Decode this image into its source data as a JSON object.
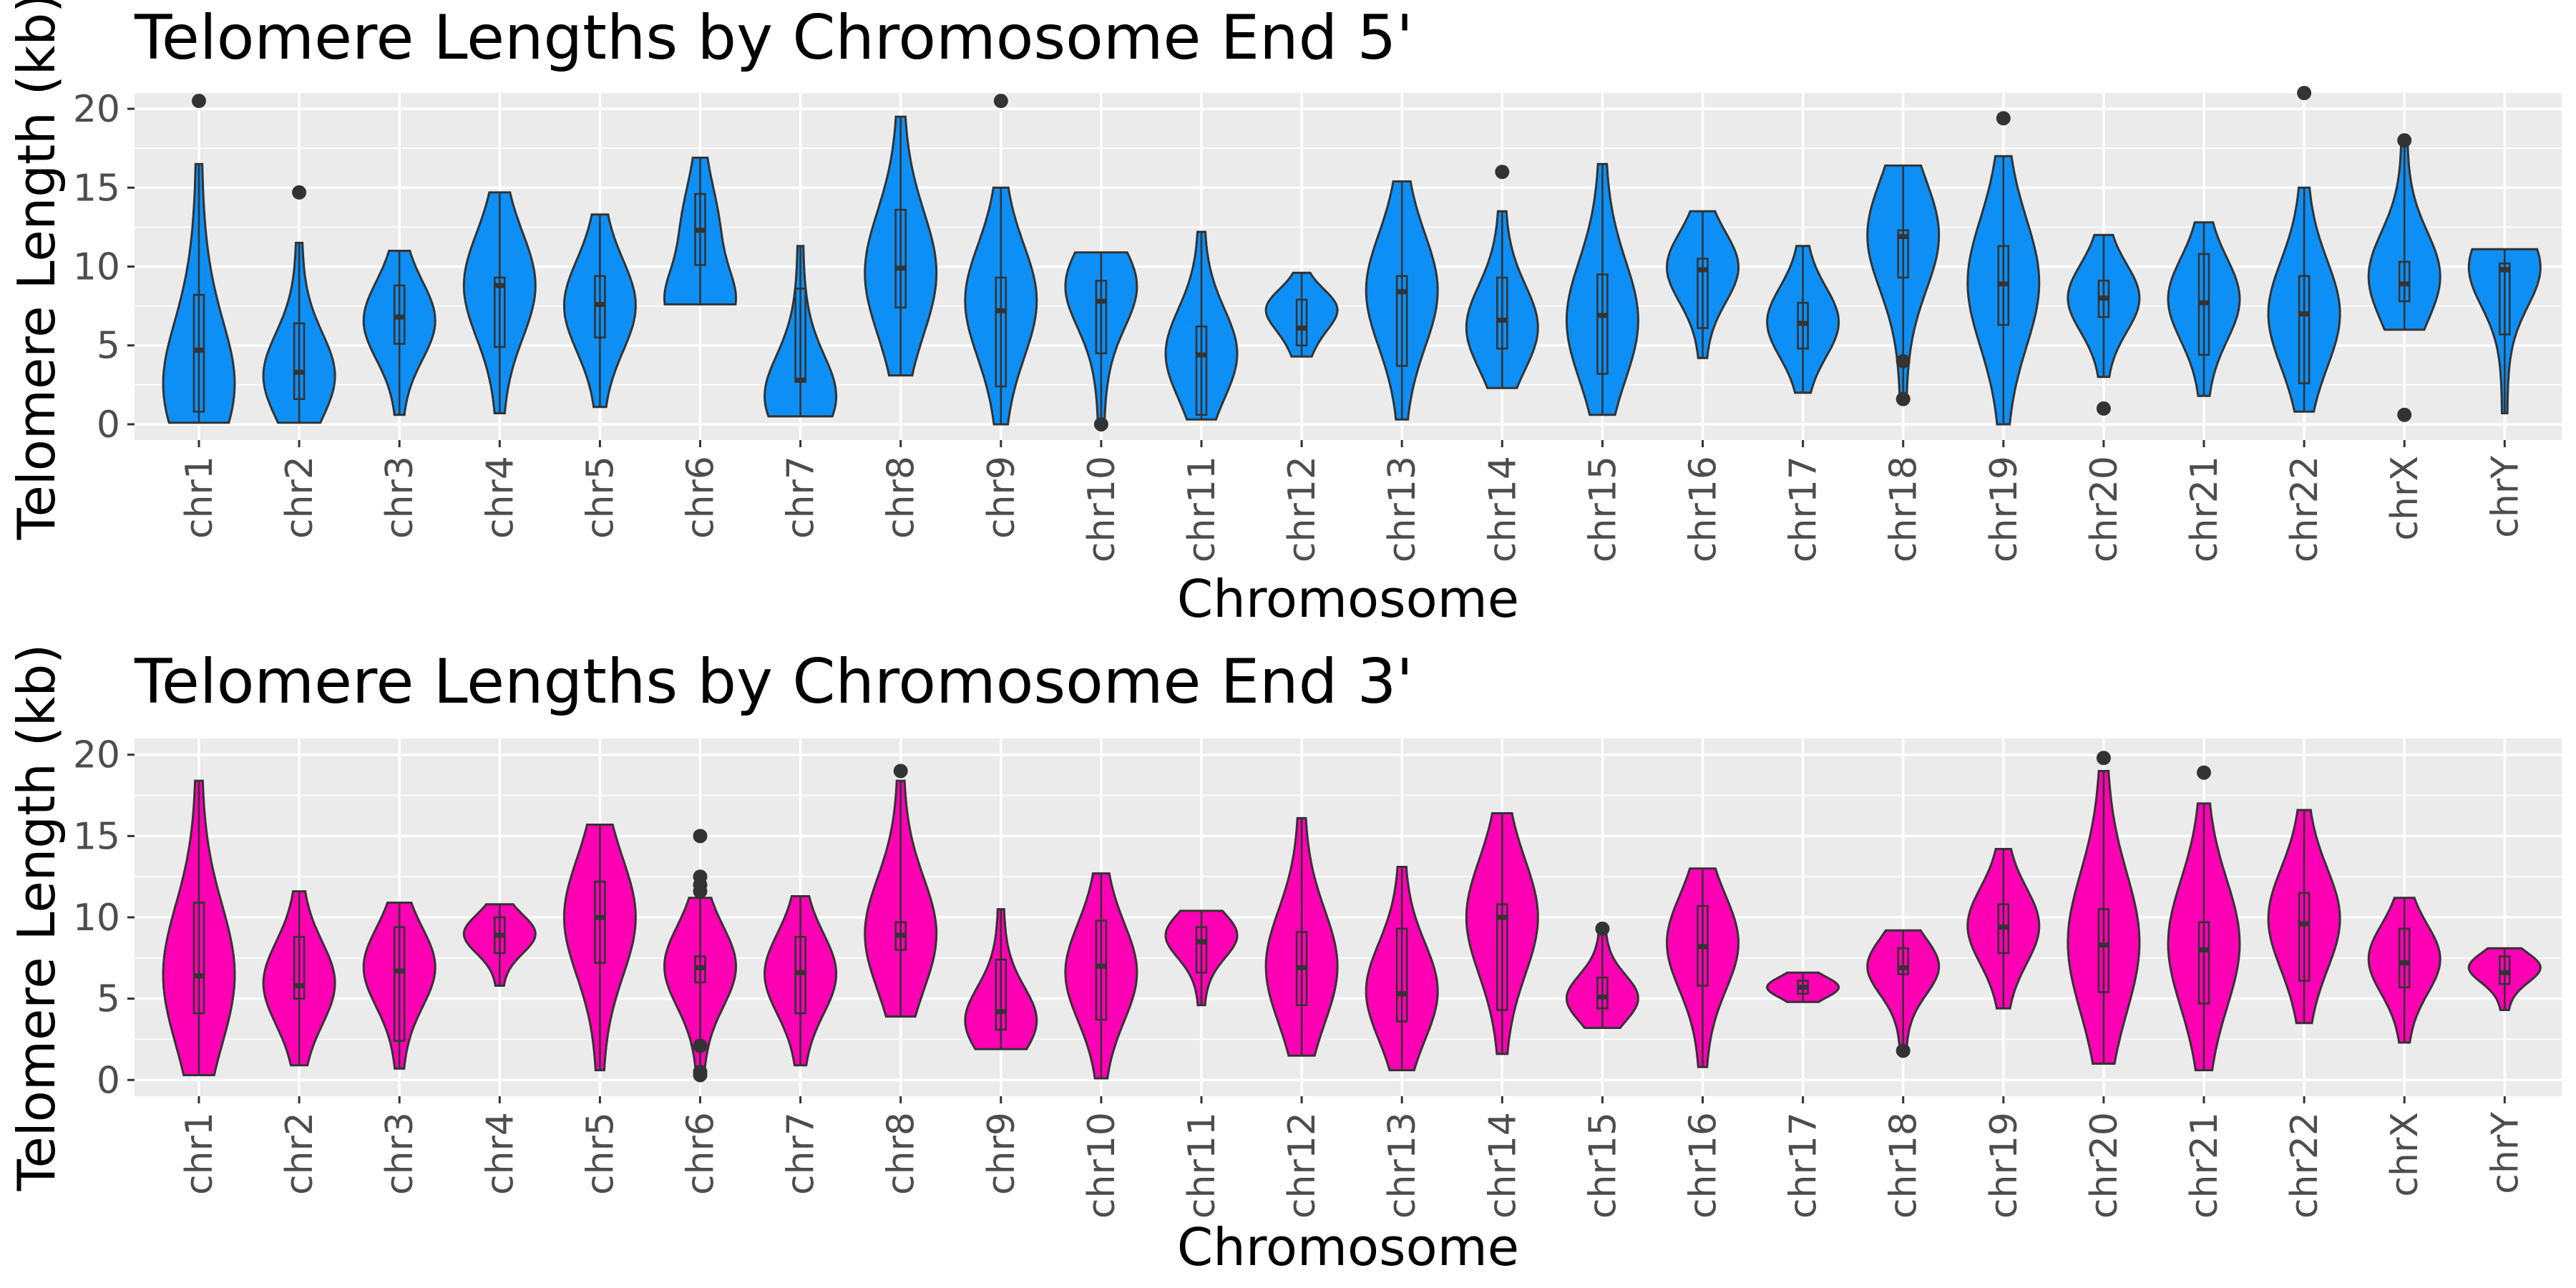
{
  "chart_data": [
    {
      "type": "violin",
      "title": "Telomere Lengths by Chromosome End 5'",
      "xlabel": "Chromosome",
      "ylabel": "Telomere Length (kb)",
      "ylim": [
        -1,
        21
      ],
      "yticks": [
        0,
        5,
        10,
        15,
        20
      ],
      "grid": true,
      "fill_color": "#0d8ff5",
      "categories": [
        "chr1",
        "chr2",
        "chr3",
        "chr4",
        "chr5",
        "chr6",
        "chr7",
        "chr8",
        "chr9",
        "chr10",
        "chr11",
        "chr12",
        "chr13",
        "chr14",
        "chr15",
        "chr16",
        "chr17",
        "chr18",
        "chr19",
        "chr20",
        "chr21",
        "chr22",
        "chrX",
        "chrY"
      ],
      "series": [
        {
          "category": "chr1",
          "min": 0.1,
          "q1": 0.8,
          "median": 4.7,
          "q3": 8.2,
          "max": 16.5,
          "outliers": [
            20.5
          ],
          "peak": 2.0
        },
        {
          "category": "chr2",
          "min": 0.1,
          "q1": 1.6,
          "median": 3.3,
          "q3": 6.4,
          "max": 11.5,
          "outliers": [
            14.7
          ],
          "peak": 3.0
        },
        {
          "category": "chr3",
          "min": 0.6,
          "q1": 5.1,
          "median": 6.8,
          "q3": 8.8,
          "max": 11.0,
          "outliers": [],
          "peak": 6.5
        },
        {
          "category": "chr4",
          "min": 0.7,
          "q1": 4.9,
          "median": 8.8,
          "q3": 9.3,
          "max": 14.7,
          "outliers": [],
          "peak": 8.8
        },
        {
          "category": "chr5",
          "min": 1.1,
          "q1": 5.5,
          "median": 7.6,
          "q3": 9.4,
          "max": 13.3,
          "outliers": [],
          "peak": 7.5
        },
        {
          "category": "chr6",
          "min": 7.6,
          "q1": 10.1,
          "median": 12.3,
          "q3": 14.6,
          "max": 16.9,
          "outliers": [],
          "peak": 7.6
        },
        {
          "category": "chr7",
          "min": 0.5,
          "q1": 2.7,
          "median": 2.8,
          "q3": 8.6,
          "max": 11.3,
          "outliers": [],
          "peak": 1.5
        },
        {
          "category": "chr8",
          "min": 3.1,
          "q1": 7.4,
          "median": 9.9,
          "q3": 13.6,
          "max": 19.5,
          "outliers": [],
          "peak": 9.5
        },
        {
          "category": "chr9",
          "min": 0.0,
          "q1": 2.4,
          "median": 7.2,
          "q3": 9.3,
          "max": 15.0,
          "outliers": [
            20.5
          ],
          "peak": 8.0
        },
        {
          "category": "chr10",
          "min": 0.1,
          "q1": 4.5,
          "median": 7.8,
          "q3": 9.1,
          "max": 10.9,
          "outliers": [
            0.0
          ],
          "peak": 9.0
        },
        {
          "category": "chr11",
          "min": 0.3,
          "q1": 0.6,
          "median": 4.4,
          "q3": 6.2,
          "max": 12.2,
          "outliers": [],
          "peak": 4.5
        },
        {
          "category": "chr12",
          "min": 4.3,
          "q1": 5.0,
          "median": 6.1,
          "q3": 7.9,
          "max": 9.6,
          "outliers": [],
          "peak": 7.5
        },
        {
          "category": "chr13",
          "min": 0.3,
          "q1": 3.7,
          "median": 8.4,
          "q3": 9.4,
          "max": 15.4,
          "outliers": [],
          "peak": 8.5
        },
        {
          "category": "chr14",
          "min": 2.3,
          "q1": 4.8,
          "median": 6.6,
          "q3": 9.3,
          "max": 13.5,
          "outliers": [
            16.0
          ],
          "peak": 6.0
        },
        {
          "category": "chr15",
          "min": 0.6,
          "q1": 3.2,
          "median": 6.9,
          "q3": 9.5,
          "max": 16.5,
          "outliers": [],
          "peak": 6.5
        },
        {
          "category": "chr16",
          "min": 4.2,
          "q1": 6.1,
          "median": 9.8,
          "q3": 10.5,
          "max": 13.5,
          "outliers": [],
          "peak": 10.0
        },
        {
          "category": "chr17",
          "min": 2.0,
          "q1": 4.8,
          "median": 6.4,
          "q3": 7.7,
          "max": 11.3,
          "outliers": [],
          "peak": 6.5
        },
        {
          "category": "chr18",
          "min": 1.8,
          "q1": 9.3,
          "median": 11.9,
          "q3": 12.3,
          "max": 16.4,
          "outliers": [
            1.6,
            4.0
          ],
          "peak": 12.0
        },
        {
          "category": "chr19",
          "min": 0.0,
          "q1": 6.3,
          "median": 8.9,
          "q3": 11.3,
          "max": 17.0,
          "outliers": [
            19.4
          ],
          "peak": 9.0
        },
        {
          "category": "chr20",
          "min": 3.0,
          "q1": 6.8,
          "median": 8.0,
          "q3": 9.1,
          "max": 12.0,
          "outliers": [
            1.0
          ],
          "peak": 8.0
        },
        {
          "category": "chr21",
          "min": 1.8,
          "q1": 4.4,
          "median": 7.7,
          "q3": 10.8,
          "max": 12.8,
          "outliers": [],
          "peak": 8.0
        },
        {
          "category": "chr22",
          "min": 0.8,
          "q1": 2.6,
          "median": 7.0,
          "q3": 9.4,
          "max": 15.0,
          "outliers": [
            21.0
          ],
          "peak": 7.0
        },
        {
          "category": "chrX",
          "min": 6.0,
          "q1": 7.8,
          "median": 8.9,
          "q3": 10.3,
          "max": 17.9,
          "outliers": [
            0.6,
            18.0
          ],
          "peak": 9.5
        },
        {
          "category": "chrY",
          "min": 0.7,
          "q1": 5.7,
          "median": 9.8,
          "q3": 10.2,
          "max": 11.1,
          "outliers": [],
          "peak": 10.0
        }
      ]
    },
    {
      "type": "violin",
      "title": "Telomere Lengths by Chromosome End 3'",
      "xlabel": "Chromosome",
      "ylabel": "Telomere Length (kb)",
      "ylim": [
        -1,
        21
      ],
      "yticks": [
        0,
        5,
        10,
        15,
        20
      ],
      "grid": true,
      "fill_color": "#ff00b4",
      "categories": [
        "chr1",
        "chr2",
        "chr3",
        "chr4",
        "chr5",
        "chr6",
        "chr7",
        "chr8",
        "chr9",
        "chr10",
        "chr11",
        "chr12",
        "chr13",
        "chr14",
        "chr15",
        "chr16",
        "chr17",
        "chr18",
        "chr19",
        "chr20",
        "chr21",
        "chr22",
        "chrX",
        "chrY"
      ],
      "series": [
        {
          "category": "chr1",
          "min": 0.3,
          "q1": 4.1,
          "median": 6.4,
          "q3": 10.9,
          "max": 18.4,
          "outliers": [],
          "peak": 6.5
        },
        {
          "category": "chr2",
          "min": 0.9,
          "q1": 5.0,
          "median": 5.8,
          "q3": 8.8,
          "max": 11.6,
          "outliers": [],
          "peak": 6.0
        },
        {
          "category": "chr3",
          "min": 0.7,
          "q1": 2.4,
          "median": 6.7,
          "q3": 9.4,
          "max": 10.9,
          "outliers": [],
          "peak": 7.0
        },
        {
          "category": "chr4",
          "min": 5.8,
          "q1": 7.8,
          "median": 8.9,
          "q3": 10.0,
          "max": 10.8,
          "outliers": [],
          "peak": 9.0
        },
        {
          "category": "chr5",
          "min": 0.6,
          "q1": 7.2,
          "median": 10.0,
          "q3": 12.2,
          "max": 15.7,
          "outliers": [],
          "peak": 10.0
        },
        {
          "category": "chr6",
          "min": 0.8,
          "q1": 6.0,
          "median": 6.9,
          "q3": 7.6,
          "max": 11.2,
          "outliers": [
            0.3,
            0.5,
            2.1,
            11.6,
            12.0,
            12.5,
            15.0
          ],
          "peak": 7.0
        },
        {
          "category": "chr7",
          "min": 0.9,
          "q1": 4.1,
          "median": 6.6,
          "q3": 8.8,
          "max": 11.3,
          "outliers": [],
          "peak": 6.5
        },
        {
          "category": "chr8",
          "min": 3.9,
          "q1": 8.0,
          "median": 8.9,
          "q3": 9.7,
          "max": 18.4,
          "outliers": [
            19.0
          ],
          "peak": 9.0
        },
        {
          "category": "chr9",
          "min": 1.9,
          "q1": 3.1,
          "median": 4.2,
          "q3": 7.4,
          "max": 10.5,
          "outliers": [],
          "peak": 3.5
        },
        {
          "category": "chr10",
          "min": 0.1,
          "q1": 3.7,
          "median": 7.0,
          "q3": 9.8,
          "max": 12.7,
          "outliers": [],
          "peak": 6.5
        },
        {
          "category": "chr11",
          "min": 4.6,
          "q1": 6.6,
          "median": 8.5,
          "q3": 9.4,
          "max": 10.4,
          "outliers": [],
          "peak": 9.0
        },
        {
          "category": "chr12",
          "min": 1.5,
          "q1": 4.6,
          "median": 6.9,
          "q3": 9.1,
          "max": 16.1,
          "outliers": [],
          "peak": 7.0
        },
        {
          "category": "chr13",
          "min": 0.6,
          "q1": 3.6,
          "median": 5.3,
          "q3": 9.3,
          "max": 13.1,
          "outliers": [],
          "peak": 5.5
        },
        {
          "category": "chr14",
          "min": 1.6,
          "q1": 4.3,
          "median": 10.0,
          "q3": 10.8,
          "max": 16.4,
          "outliers": [],
          "peak": 10.0
        },
        {
          "category": "chr15",
          "min": 3.2,
          "q1": 4.4,
          "median": 5.1,
          "q3": 6.3,
          "max": 9.2,
          "outliers": [
            9.3
          ],
          "peak": 5.0
        },
        {
          "category": "chr16",
          "min": 0.8,
          "q1": 5.8,
          "median": 8.2,
          "q3": 10.7,
          "max": 13.0,
          "outliers": [],
          "peak": 8.5
        },
        {
          "category": "chr17",
          "min": 4.8,
          "q1": 5.3,
          "median": 5.7,
          "q3": 6.1,
          "max": 6.6,
          "outliers": [],
          "peak": 5.7
        },
        {
          "category": "chr18",
          "min": 2.0,
          "q1": 6.5,
          "median": 6.9,
          "q3": 8.1,
          "max": 9.2,
          "outliers": [
            1.8
          ],
          "peak": 7.0
        },
        {
          "category": "chr19",
          "min": 4.4,
          "q1": 7.8,
          "median": 9.4,
          "q3": 10.8,
          "max": 14.2,
          "outliers": [],
          "peak": 9.5
        },
        {
          "category": "chr20",
          "min": 1.0,
          "q1": 5.4,
          "median": 8.3,
          "q3": 10.5,
          "max": 19.0,
          "outliers": [
            19.8
          ],
          "peak": 8.5
        },
        {
          "category": "chr21",
          "min": 0.6,
          "q1": 4.7,
          "median": 8.0,
          "q3": 9.7,
          "max": 17.0,
          "outliers": [
            18.9
          ],
          "peak": 8.5
        },
        {
          "category": "chr22",
          "min": 3.5,
          "q1": 6.1,
          "median": 9.6,
          "q3": 11.5,
          "max": 16.6,
          "outliers": [],
          "peak": 10.0
        },
        {
          "category": "chrX",
          "min": 2.3,
          "q1": 5.7,
          "median": 7.2,
          "q3": 9.3,
          "max": 11.2,
          "outliers": [],
          "peak": 7.5
        },
        {
          "category": "chrY",
          "min": 4.3,
          "q1": 5.9,
          "median": 6.6,
          "q3": 7.6,
          "max": 8.1,
          "outliers": [],
          "peak": 7.0
        }
      ]
    }
  ]
}
